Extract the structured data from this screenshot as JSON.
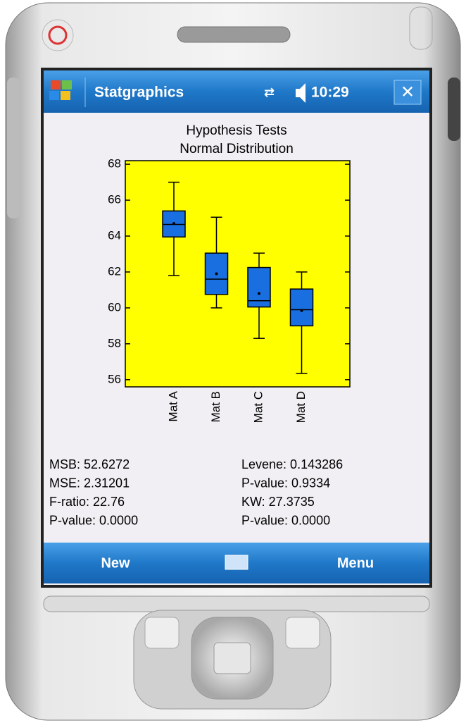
{
  "app_title": "Statgraphics",
  "clock": "10:29",
  "chart_data": {
    "type": "boxplot",
    "title": "Hypothesis Tests",
    "subtitle": "Normal Distribution",
    "categories": [
      "Mat A",
      "Mat B",
      "Mat C",
      "Mat D"
    ],
    "boxes": [
      {
        "low": 61.8,
        "q1": 63.95,
        "median": 64.65,
        "q3": 65.4,
        "high": 67.0,
        "mean": 64.7
      },
      {
        "low": 60.0,
        "q1": 60.75,
        "median": 61.6,
        "q3": 63.05,
        "high": 65.05,
        "mean": 61.9
      },
      {
        "low": 58.3,
        "q1": 60.05,
        "median": 60.4,
        "q3": 62.25,
        "high": 63.05,
        "mean": 60.8
      },
      {
        "low": 56.35,
        "q1": 59.0,
        "median": 59.9,
        "q3": 61.05,
        "high": 62.0,
        "mean": 59.85
      }
    ],
    "color": "#1a6fe0",
    "background": "#ffff00",
    "ylim": [
      55.6,
      68.2
    ],
    "yticks": [
      56,
      58,
      60,
      62,
      64,
      66,
      68
    ]
  },
  "stats": {
    "left": [
      "MSB: 52.6272",
      "MSE: 2.31201",
      "F-ratio: 22.76",
      "P-value: 0.0000"
    ],
    "right": [
      "Levene: 0.143286",
      "P-value: 0.9334",
      "KW: 27.3735",
      "P-value: 0.0000"
    ]
  },
  "menu": {
    "left": "New",
    "right": "Menu"
  }
}
